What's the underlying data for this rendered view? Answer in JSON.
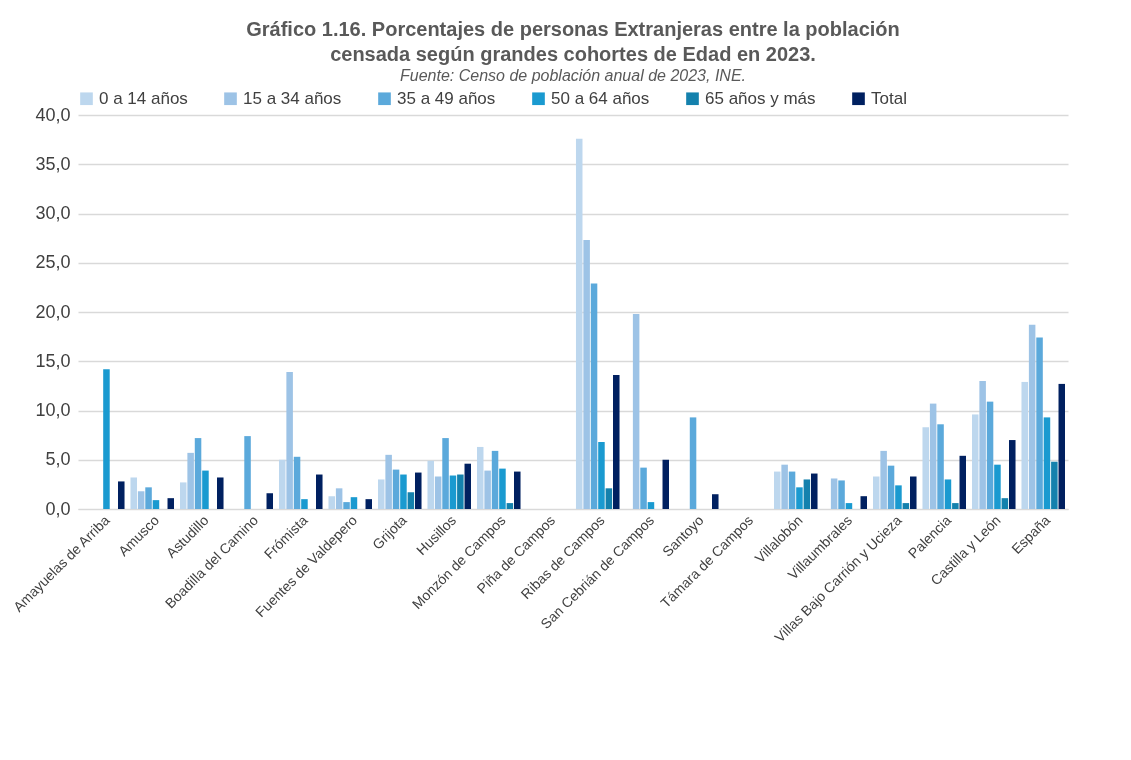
{
  "chart_data": {
    "type": "bar",
    "title": "Gráfico 1.16. Porcentajes de personas Extranjeras entre la población censada según grandes cohortes de Edad en 2023.",
    "subtitle": "Fuente: Censo de población anual de 2023, INE.",
    "categories": [
      "Amayuelas de Arriba",
      "Amusco",
      "Astudillo",
      "Boadilla del Camino",
      "Frómista",
      "Fuentes de Valdepero",
      "Grijota",
      "Husillos",
      "Monzón de Campos",
      "Piña de Campos",
      "Ribas de Campos",
      "San Cebrián de Campos",
      "Santoyo",
      "Támara de Campos",
      "Villalobón",
      "Villaumbrales",
      "Villas Bajo Carrión y Ucieza",
      "Palencia",
      "Castilla y León",
      "España"
    ],
    "series": [
      {
        "name": "0 a 14 años",
        "color": "#bdd7ee",
        "values": [
          null,
          3.2,
          2.7,
          null,
          5.0,
          1.3,
          3.0,
          4.9,
          6.3,
          null,
          37.6,
          null,
          null,
          null,
          3.8,
          null,
          3.3,
          8.3,
          9.6,
          12.9
        ]
      },
      {
        "name": "15 a 34 años",
        "color": "#9dc3e6",
        "values": [
          null,
          1.8,
          5.7,
          null,
          13.9,
          2.1,
          5.5,
          3.3,
          3.9,
          null,
          27.3,
          19.8,
          null,
          null,
          4.5,
          3.1,
          5.9,
          10.7,
          13.0,
          18.7
        ]
      },
      {
        "name": "35 a 49 años",
        "color": "#5ba9db",
        "values": [
          null,
          2.2,
          7.2,
          7.4,
          5.3,
          0.7,
          4.0,
          7.2,
          5.9,
          null,
          22.9,
          4.2,
          9.3,
          null,
          3.8,
          2.9,
          4.4,
          8.6,
          10.9,
          17.4
        ]
      },
      {
        "name": "50 a 64 años",
        "color": "#1a9ad0",
        "values": [
          14.2,
          0.9,
          3.9,
          null,
          1.0,
          1.2,
          3.5,
          3.4,
          4.1,
          null,
          6.8,
          0.7,
          null,
          null,
          2.2,
          0.6,
          2.4,
          3.0,
          4.5,
          9.3
        ]
      },
      {
        "name": "65 años y más",
        "color": "#1481ad",
        "values": [
          null,
          null,
          null,
          null,
          null,
          null,
          1.7,
          3.5,
          0.6,
          null,
          2.1,
          null,
          null,
          null,
          3.0,
          null,
          0.6,
          0.6,
          1.1,
          4.8
        ]
      },
      {
        "name": "Total",
        "color": "#002060",
        "values": [
          2.8,
          1.1,
          3.2,
          1.6,
          3.5,
          1.0,
          3.7,
          4.6,
          3.8,
          null,
          13.6,
          5.0,
          1.5,
          null,
          3.6,
          1.3,
          3.3,
          5.4,
          7.0,
          12.7
        ]
      }
    ],
    "ylim": [
      0,
      40
    ],
    "yticks": [
      {
        "value": 0,
        "label": "0,0"
      },
      {
        "value": 5,
        "label": "5,0"
      },
      {
        "value": 10,
        "label": "10,0"
      },
      {
        "value": 15,
        "label": "15,0"
      },
      {
        "value": 20,
        "label": "20,0"
      },
      {
        "value": 25,
        "label": "25,0"
      },
      {
        "value": 30,
        "label": "30,0"
      },
      {
        "value": 35,
        "label": "35,0"
      },
      {
        "value": 40,
        "label": "40,0"
      }
    ],
    "grid": "y",
    "legend": "top"
  }
}
